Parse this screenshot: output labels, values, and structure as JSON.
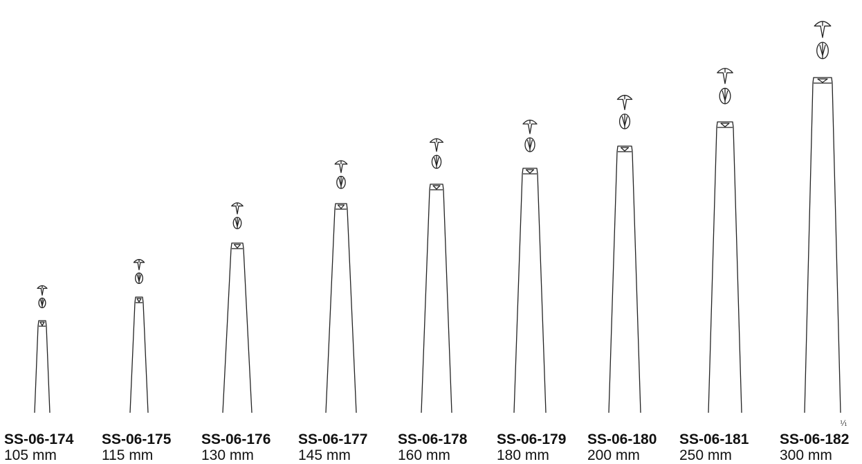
{
  "scale": "¹⁄₁",
  "instruments": [
    {
      "code": "SS-06-174",
      "length": "105 mm",
      "length_mm": 105
    },
    {
      "code": "SS-06-175",
      "length": "115 mm",
      "length_mm": 115
    },
    {
      "code": "SS-06-176",
      "length": "130 mm",
      "length_mm": 130
    },
    {
      "code": "SS-06-177",
      "length": "145 mm",
      "length_mm": 145
    },
    {
      "code": "SS-06-178",
      "length": "160 mm",
      "length_mm": 160
    },
    {
      "code": "SS-06-179",
      "length": "180 mm",
      "length_mm": 180
    },
    {
      "code": "SS-06-180",
      "length": "200 mm",
      "length_mm": 200
    },
    {
      "code": "SS-06-181",
      "length": "250 mm",
      "length_mm": 250
    },
    {
      "code": "SS-06-182",
      "length": "300 mm",
      "length_mm": 300
    }
  ]
}
